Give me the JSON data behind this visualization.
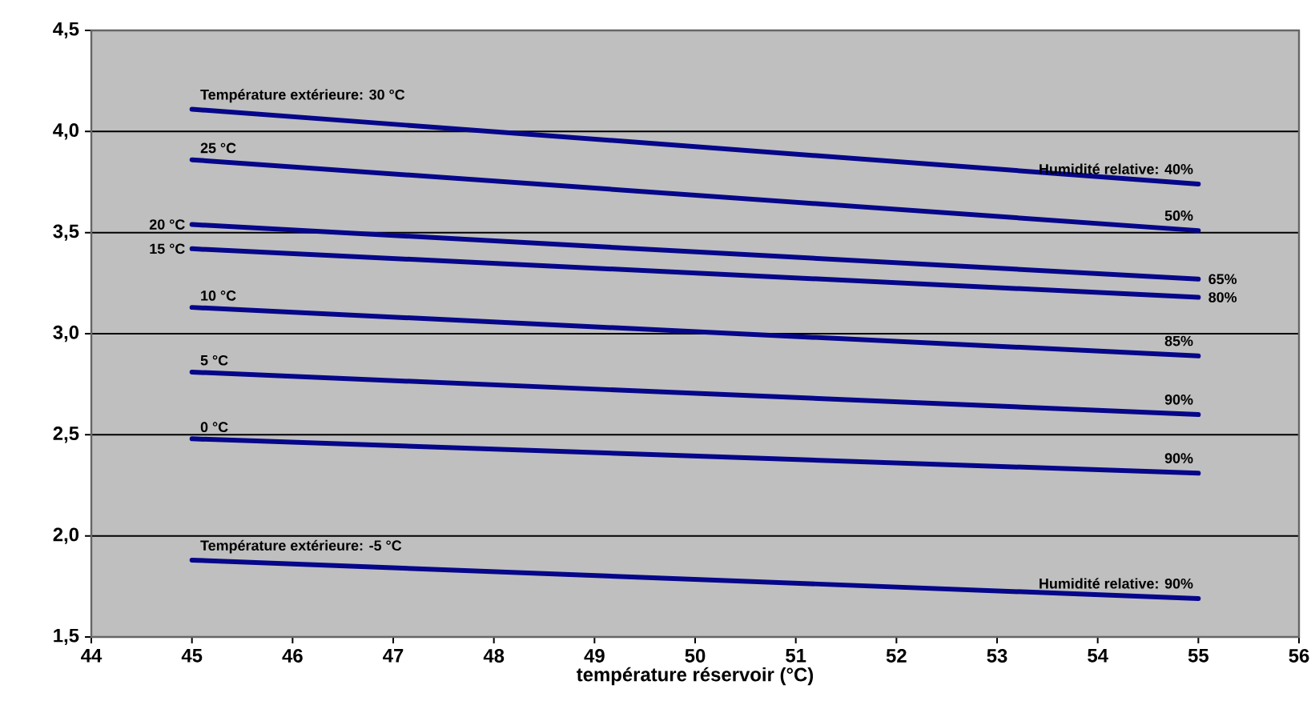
{
  "chart_data": {
    "type": "line",
    "xlabel": "température réservoir (°C)",
    "x": [
      45,
      55
    ],
    "xlim": [
      44,
      56
    ],
    "xticks": [
      44,
      45,
      46,
      47,
      48,
      49,
      50,
      51,
      52,
      53,
      54,
      55,
      56
    ],
    "ylim": [
      1.5,
      4.5
    ],
    "yticks": [
      {
        "value": 1.5,
        "label": "1,5"
      },
      {
        "value": 2.0,
        "label": "2,0"
      },
      {
        "value": 2.5,
        "label": "2,5"
      },
      {
        "value": 3.0,
        "label": "3,0"
      },
      {
        "value": 3.5,
        "label": "3,5"
      },
      {
        "value": 4.0,
        "label": "4,0"
      },
      {
        "value": 4.5,
        "label": "4,5"
      }
    ],
    "grid": "y",
    "legend": false,
    "marker": "none",
    "line_style": "solid",
    "series": [
      {
        "name": "Température extérieure: 30 °C",
        "color": "#06068a",
        "values": [
          4.11,
          3.74
        ]
      },
      {
        "name": "25 °C",
        "color": "#06068a",
        "values": [
          3.86,
          3.51
        ]
      },
      {
        "name": "20 °C",
        "color": "#06068a",
        "values": [
          3.54,
          3.27
        ]
      },
      {
        "name": "15 °C",
        "color": "#06068a",
        "values": [
          3.42,
          3.18
        ]
      },
      {
        "name": "10 °C",
        "color": "#06068a",
        "values": [
          3.13,
          2.89
        ]
      },
      {
        "name": "5 °C",
        "color": "#06068a",
        "values": [
          2.81,
          2.6
        ]
      },
      {
        "name": "0 °C",
        "color": "#06068a",
        "values": [
          2.48,
          2.31
        ]
      },
      {
        "name": "Température extérieure: -5 °C",
        "color": "#06068a",
        "values": [
          1.88,
          1.69
        ]
      }
    ],
    "annotations": [
      "Humidité relative: 40%",
      "50%",
      "65%",
      "80%",
      "85%",
      "90%",
      "90%",
      "Humidité relative: 90%"
    ]
  }
}
